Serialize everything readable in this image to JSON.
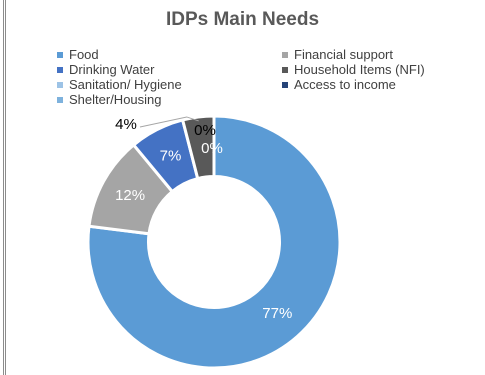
{
  "chart_data": {
    "type": "pie",
    "title": "IDPs Main Needs",
    "legend_position": "top",
    "categories": [
      "Food",
      "Financial support",
      "Drinking Water",
      "Household Items (NFI)",
      "Sanitation/ Hygiene",
      "Access to income",
      "Shelter/Housing"
    ],
    "values": [
      77,
      12,
      7,
      4,
      0,
      0,
      0
    ],
    "data_labels": [
      "77%",
      "12%",
      "7%",
      "4%",
      "0%",
      "0%",
      "0%"
    ],
    "colors": [
      "#5b9bd5",
      "#a5a5a5",
      "#4472c4",
      "#595959",
      "#9dc3e6",
      "#264478",
      "#7eb2dd"
    ],
    "hole": 0.52,
    "start_order": [
      "Food",
      "Financial support",
      "Drinking Water",
      "Household Items (NFI)"
    ]
  }
}
